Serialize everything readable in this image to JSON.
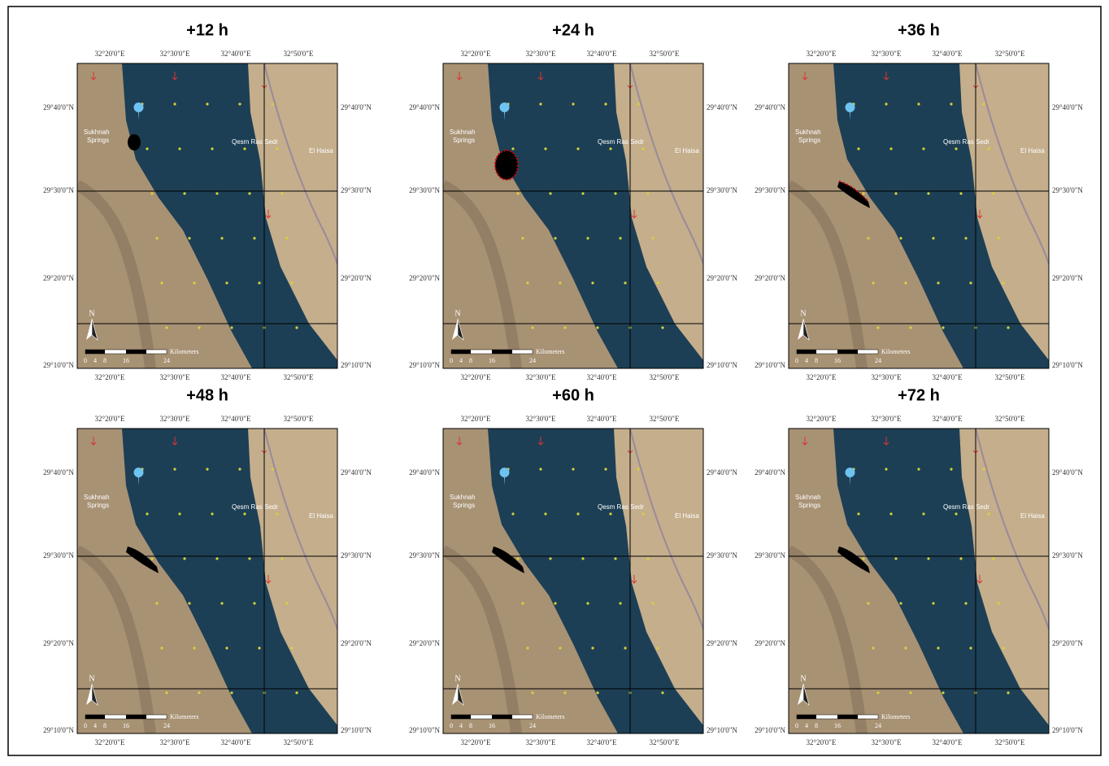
{
  "panels": [
    {
      "title": "+12 h"
    },
    {
      "title": "+24 h"
    },
    {
      "title": "+36 h"
    },
    {
      "title": "+48 h"
    },
    {
      "title": "+60 h"
    },
    {
      "title": "+72 h"
    }
  ],
  "lon_labels": [
    "32°20'0\"E",
    "32°30'0\"E",
    "32°40'0\"E",
    "32°50'0\"E"
  ],
  "lat_labels": [
    "29°40'0\"N",
    "29°30'0\"N",
    "29°20'0\"N",
    "29°10'0\"N"
  ],
  "places": [
    "Sukhnah",
    "Springs",
    "Qesm Ras Sedr",
    "El Haisa"
  ],
  "scale": {
    "ticks": [
      "0",
      "4",
      "8",
      "16",
      "24"
    ],
    "unit": "Kilometers",
    "north": "N"
  }
}
